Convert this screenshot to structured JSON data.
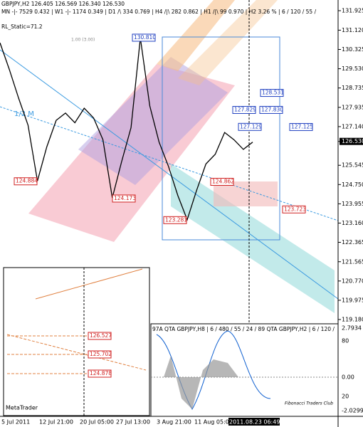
{
  "header": {
    "line1": "GBPJPY,H2  126.405 126.569 126.340 126.530",
    "line2": "MN -|- 7529   0.432 | W1 -|- 1174   0.349 | D1 /\\ 334   0.769 | H4 /|\\ 282   0.862 | H1 /|\\ 99   0.970 | H2  3.26 % | 6 / 120 / 55 /",
    "line3": "RL_Static=71.2"
  },
  "price_axis": [
    131.925,
    {
      "value": 131.12,
      "label": "131.120"
    },
    130.325,
    {
      "value": 129.53,
      "label": "129.530"
    },
    128.735,
    127.935,
    {
      "value": 127.14,
      "label": "127.140"
    },
    {
      "value": 126.53,
      "label": "126.530"
    },
    125.545,
    {
      "value": 124.75,
      "label": "124.750"
    },
    123.955,
    {
      "value": 123.16,
      "label": "123.160"
    },
    122.365,
    121.565,
    {
      "value": 120.77,
      "label": "120.770"
    },
    119.975,
    {
      "value": 119.18,
      "label": "119.180"
    }
  ],
  "levels": [
    {
      "value": 130.81,
      "label": "130.810"
    },
    128.531,
    127.829,
    {
      "value": 127.83,
      "label": "127.830"
    },
    127.129,
    127.125,
    124.884,
    124.173,
    124.862,
    123.723,
    123.281
  ],
  "price": {
    "values": [
      130.6,
      129.5,
      128.3,
      127.2,
      124.9,
      126.3,
      127.4,
      127.7,
      127.3,
      127.9,
      127.5,
      126.6,
      124.2,
      125.7,
      127.1,
      130.8,
      128.0,
      126.5,
      125.5,
      124.3,
      123.3,
      124.5,
      125.6,
      126.0,
      126.9,
      126.6,
      126.2,
      126.5
    ]
  },
  "annotations": {
    "half": "1/2 M",
    "fib": "1.00 (3.00)",
    "club": "Fibonacci Traders Club",
    "logo": "MetaTrader"
  },
  "inset_levels": [
    126.527,
    {
      "value": 125.702,
      "label": "125.702"
    },
    124.878
  ],
  "sub_axis": [
    "2.7934",
    "80",
    "0.00",
    "20",
    "-2.0299"
  ],
  "sub_header": "97A  QTA  GBPJPY,H8  |  6 / 480 / 55 / 24 / 89  QTA  GBPJPY,H2  |  6 / 120 /",
  "dates": [
    "5 Jul 2011",
    "12 Jul 21:00",
    "20 Jul 05:00",
    "27 Jul 13:00",
    "3 Aug 21:00",
    "11 Aug 05:00",
    "2011.08.23 06:49"
  ]
}
